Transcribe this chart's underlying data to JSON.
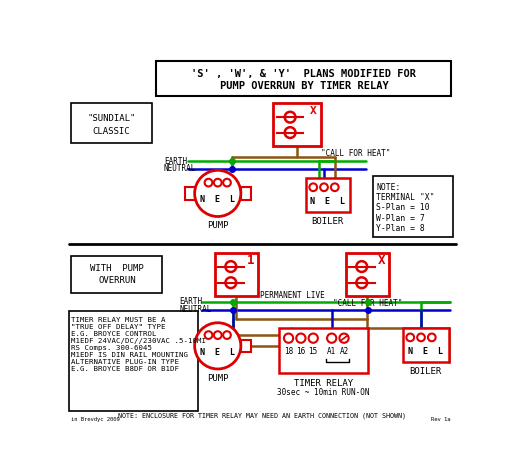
{
  "title_line1": "'S' , 'W', & 'Y'  PLANS MODIFIED FOR",
  "title_line2": "PUMP OVERRUN BY TIMER RELAY",
  "bg_color": "#ffffff",
  "red": "#dd0000",
  "green": "#00aa00",
  "blue": "#0000cc",
  "brown": "#8B5513",
  "black": "#000000",
  "note_text": "NOTE:\nTERMINAL \"X\"\nS-Plan = 10\nW-Plan = 7\nY-Plan = 8",
  "timer_note": "NOTE: ENCLOSURE FOR TIMER RELAY MAY NEED AN EARTH CONNECTION (NOT SHOWN)",
  "timer_relay_sub": "30sec ~ 10min RUN-ON",
  "bottom_left_text": "TIMER RELAY MUST BE A\n\"TRUE OFF DELAY\" TYPE\nE.G. BROYCE CONTROL\nM1EDF 24VAC/DC//230VAC .5-10MI\nRS Comps. 300-6045\nM1EDF IS DIN RAIL MOUNTING\nALTERNATIVE PLUG-IN TYPE\nE.G. BROYCE B8DF OR B1DF"
}
